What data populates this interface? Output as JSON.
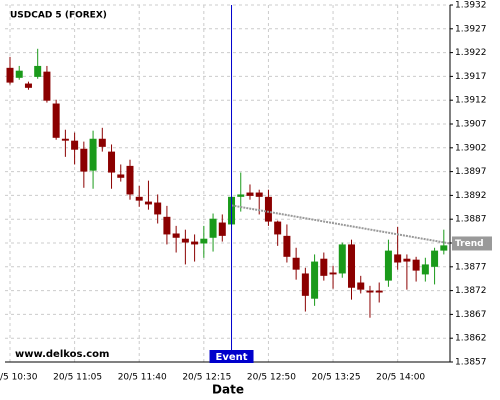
{
  "chart_data": {
    "type": "candlestick",
    "title": "USDCAD 5 (FOREX)",
    "x_label": "Date",
    "watermark": "www.delkos.com",
    "categories": [
      "20/5 10:30",
      null,
      null,
      null,
      null,
      null,
      null,
      "20/5 11:05",
      null,
      null,
      null,
      null,
      null,
      null,
      "20/5 11:40",
      null,
      null,
      null,
      null,
      null,
      null,
      "20/5 12:15",
      null,
      null,
      null,
      null,
      null,
      null,
      "20/5 12:50",
      null,
      null,
      null,
      null,
      null,
      null,
      "20/5 13:25",
      null,
      null,
      null,
      null,
      null,
      null,
      "20/5 14:00",
      null,
      null,
      null,
      null,
      null
    ],
    "open": [
      1.39188,
      1.39167,
      1.39155,
      1.39169,
      1.3918,
      1.39113,
      1.39039,
      1.39035,
      1.39018,
      1.38972,
      1.39039,
      1.39012,
      1.38964,
      1.38982,
      1.38917,
      1.38907,
      1.38905,
      1.38875,
      1.3884,
      1.38829,
      1.38823,
      1.38819,
      1.38831,
      1.38863,
      1.38859,
      1.38917,
      1.38926,
      1.38926,
      1.38917,
      1.38865,
      1.38835,
      1.38789,
      1.38756,
      1.38703,
      1.38787,
      1.38758,
      1.38756,
      1.38817,
      1.38737,
      1.3872,
      1.3872,
      1.38741,
      1.38796,
      1.38787,
      1.38785,
      1.38754,
      1.3877,
      1.38804
    ],
    "high": [
      1.39211,
      1.39192,
      1.39159,
      1.39228,
      1.39192,
      1.39121,
      1.39058,
      1.39052,
      1.39033,
      1.39056,
      1.39062,
      1.39027,
      1.38985,
      1.38995,
      1.3894,
      1.38951,
      1.38922,
      1.38898,
      1.38856,
      1.38848,
      1.38838,
      1.38856,
      1.38882,
      1.3888,
      1.38922,
      1.38968,
      1.38943,
      1.38932,
      1.38932,
      1.38867,
      1.38859,
      1.3881,
      1.38768,
      1.38796,
      1.388,
      1.38772,
      1.38821,
      1.38827,
      1.38751,
      1.3873,
      1.38737,
      1.38827,
      1.38854,
      1.38796,
      1.38791,
      1.38789,
      1.3881,
      1.38848
    ],
    "low": [
      1.39153,
      1.39163,
      1.39142,
      1.39165,
      1.39115,
      1.39037,
      1.39001,
      1.38985,
      1.38936,
      1.38934,
      1.39012,
      1.38934,
      1.38949,
      1.38911,
      1.38896,
      1.3889,
      1.38861,
      1.38817,
      1.388,
      1.38775,
      1.38781,
      1.38789,
      1.38802,
      1.38823,
      1.38848,
      1.38886,
      1.38911,
      1.3888,
      1.38856,
      1.38814,
      1.38779,
      1.38743,
      1.38676,
      1.38688,
      1.38741,
      1.38724,
      1.38747,
      1.38701,
      1.38714,
      1.38663,
      1.38695,
      1.38728,
      1.38764,
      1.38722,
      1.38739,
      1.38739,
      1.38733,
      1.38796
    ],
    "close": [
      1.39157,
      1.39182,
      1.39146,
      1.39192,
      1.39119,
      1.39041,
      1.39035,
      1.39016,
      1.3897,
      1.39039,
      1.39022,
      1.38968,
      1.38957,
      1.38922,
      1.38909,
      1.38901,
      1.3888,
      1.38838,
      1.38831,
      1.38821,
      1.38817,
      1.38829,
      1.38871,
      1.38835,
      1.38917,
      1.38922,
      1.38919,
      1.38917,
      1.38865,
      1.38838,
      1.38791,
      1.38764,
      1.38709,
      1.38781,
      1.38751,
      1.38754,
      1.38817,
      1.38726,
      1.38722,
      1.38716,
      1.38716,
      1.38804,
      1.38779,
      1.38781,
      1.38762,
      1.38775,
      1.38804,
      1.38815
    ],
    "up_color": "#1a9a1a",
    "down_color": "#8b0000",
    "ylim": [
      1.3857,
      1.3932
    ],
    "yticks": [
      1.3932,
      1.3927,
      1.3922,
      1.3917,
      1.3912,
      1.3907,
      1.3902,
      1.3897,
      1.3892,
      1.3887,
      1.3882,
      1.3877,
      1.3872,
      1.3867,
      1.3862,
      1.3857
    ],
    "grid": true,
    "event": {
      "label": "Event",
      "category_index": 24,
      "color": "#0000cc"
    },
    "trend": {
      "label": "Trend",
      "category_index": [
        24,
        47
      ],
      "values": [
        1.38899,
        1.38819
      ],
      "color": "#999999"
    }
  }
}
